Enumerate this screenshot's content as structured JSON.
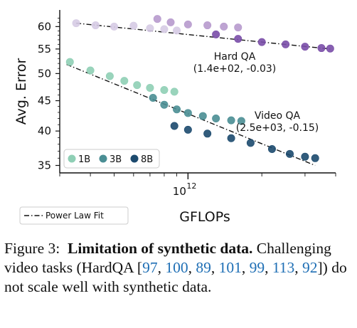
{
  "chart_data": {
    "type": "scatter",
    "xlabel": "GFLOPs",
    "ylabel": "Avg. Error",
    "x_scale": "log",
    "y_scale": "log",
    "xlim": [
      300000000000.0,
      4000000000000.0
    ],
    "ylim": [
      34,
      64
    ],
    "x_major_ticks": [
      {
        "value": 1000000000000.0,
        "label": "10",
        "exp": "12"
      }
    ],
    "y_ticks": [
      35,
      40,
      45,
      50,
      55,
      60
    ],
    "grid": false,
    "model_sizes": [
      "1B",
      "3B",
      "8B"
    ],
    "colors": {
      "1B": "#8fcfb5",
      "3B": "#4a8e94",
      "8B": "#1c4a6e",
      "hard_1B": "#d6cbe4",
      "hard_3B": "#b79acd",
      "hard_8B": "#7a4ea8"
    },
    "legend_sizes": {
      "position": "lower-left",
      "entries": [
        "1B",
        "3B",
        "8B"
      ]
    },
    "legend_fit": {
      "position": "below-axis-left",
      "label": "Power Law Fit"
    },
    "fits": [
      {
        "name": "Hard QA",
        "params": "(1.4e+02, -0.03)",
        "x_range": [
          350000000000.0,
          3800000000000.0
        ],
        "y_range": [
          60.8,
          55.0
        ]
      },
      {
        "name": "Video QA",
        "params": "(2.5e+03, -0.15)",
        "x_range": [
          320000000000.0,
          3300000000000.0
        ],
        "y_range": [
          51.8,
          35.0
        ]
      }
    ],
    "series": [
      {
        "task": "Hard QA",
        "size": "1B",
        "x": [
          350000000000.0,
          420000000000.0,
          500000000000.0,
          600000000000.0,
          700000000000.0,
          800000000000.0,
          900000000000.0
        ],
        "y": [
          60.8,
          60.3,
          60.0,
          60.2,
          59.6,
          59.4,
          59.1
        ]
      },
      {
        "task": "Hard QA",
        "size": "3B",
        "x": [
          750000000000.0,
          850000000000.0,
          1000000000000.0,
          1200000000000.0,
          1400000000000.0,
          1600000000000.0
        ],
        "y": [
          61.8,
          61.0,
          60.5,
          60.3,
          60.0,
          59.8
        ]
      },
      {
        "task": "Hard QA",
        "size": "8B",
        "x": [
          1300000000000.0,
          1600000000000.0,
          2000000000000.0,
          2500000000000.0,
          3000000000000.0,
          3500000000000.0,
          3800000000000.0
        ],
        "y": [
          58.2,
          57.2,
          56.5,
          56.0,
          55.5,
          55.2,
          55.1
        ]
      },
      {
        "task": "Video QA",
        "size": "1B",
        "x": [
          330000000000.0,
          400000000000.0,
          480000000000.0,
          550000000000.0,
          620000000000.0,
          700000000000.0,
          800000000000.0,
          880000000000.0
        ],
        "y": [
          52.3,
          50.6,
          49.5,
          48.6,
          47.8,
          47.3,
          46.9,
          46.6
        ]
      },
      {
        "task": "Video QA",
        "size": "3B",
        "x": [
          720000000000.0,
          800000000000.0,
          900000000000.0,
          1000000000000.0,
          1150000000000.0,
          1300000000000.0,
          1500000000000.0,
          1650000000000.0
        ],
        "y": [
          45.5,
          44.3,
          43.5,
          42.9,
          42.4,
          42.0,
          41.7,
          41.6
        ]
      },
      {
        "task": "Video QA",
        "size": "8B",
        "x": [
          880000000000.0,
          1000000000000.0,
          1200000000000.0,
          1500000000000.0,
          1800000000000.0,
          2200000000000.0,
          2600000000000.0,
          3000000000000.0,
          3300000000000.0
        ],
        "y": [
          40.8,
          40.2,
          39.6,
          38.9,
          38.2,
          37.3,
          36.6,
          36.2,
          36.0
        ]
      }
    ]
  },
  "caption": {
    "figure_label": "Figure 3:",
    "title": "Limitation of synthetic data.",
    "text_before": "Challenging video tasks (HardQA [",
    "citations": [
      "97",
      "100",
      "89",
      "101",
      "99",
      "113",
      "92"
    ],
    "text_after": "]) do not scale well with synthetic data."
  }
}
